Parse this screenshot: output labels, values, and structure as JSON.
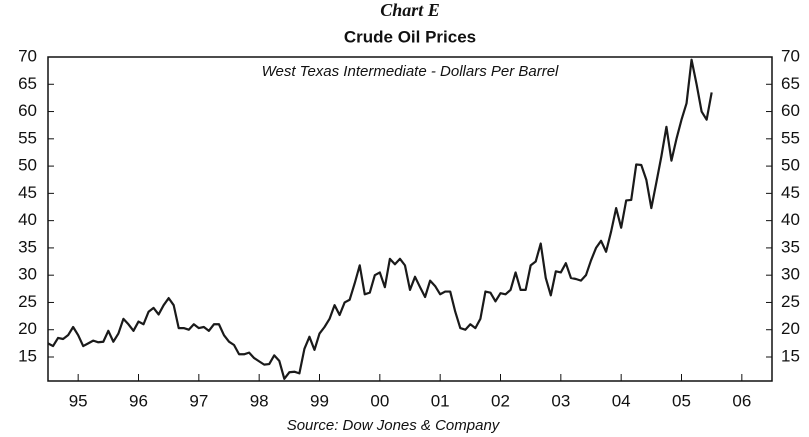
{
  "chart_data": {
    "type": "line",
    "title": "Chart E",
    "subtitle": "Crude Oil Prices",
    "annotation": "West Texas Intermediate - Dollars Per Barrel",
    "source": "Source: Dow Jones & Company",
    "categories": [
      null,
      null,
      null,
      null,
      null,
      null,
      "95",
      null,
      null,
      null,
      null,
      null,
      null,
      null,
      null,
      null,
      null,
      null,
      "96",
      null,
      null,
      null,
      null,
      null,
      null,
      null,
      null,
      null,
      null,
      null,
      "97",
      null,
      null,
      null,
      null,
      null,
      null,
      null,
      null,
      null,
      null,
      null,
      "98",
      null,
      null,
      null,
      null,
      null,
      null,
      null,
      null,
      null,
      null,
      null,
      "99",
      null,
      null,
      null,
      null,
      null,
      null,
      null,
      null,
      null,
      null,
      null,
      "00",
      null,
      null,
      null,
      null,
      null,
      null,
      null,
      null,
      null,
      null,
      null,
      "01",
      null,
      null,
      null,
      null,
      null,
      null,
      null,
      null,
      null,
      null,
      null,
      "02",
      null,
      null,
      null,
      null,
      null,
      null,
      null,
      null,
      null,
      null,
      null,
      "03",
      null,
      null,
      null,
      null,
      null,
      null,
      null,
      null,
      null,
      null,
      null,
      "04",
      null,
      null,
      null,
      null,
      null,
      null,
      null,
      null,
      null,
      null,
      null,
      "05",
      null,
      null,
      null,
      null,
      null,
      null,
      null,
      null,
      null,
      null,
      null,
      "06",
      null,
      null,
      null,
      null,
      null,
      null
    ],
    "series": [
      {
        "name": "West Texas Intermediate",
        "color": "#1a1a1a",
        "values": [
          17.5,
          17,
          18.5,
          18.3,
          19,
          20.5,
          19,
          17,
          17.5,
          18,
          17.7,
          17.8,
          19.8,
          17.8,
          19.3,
          22,
          21,
          19.8,
          21.5,
          21,
          23.3,
          24,
          22.8,
          24.5,
          25.8,
          24.5,
          20.3,
          20.3,
          20,
          21,
          20.3,
          20.5,
          19.8,
          21,
          21,
          19,
          17.8,
          17.2,
          15.5,
          15.5,
          15.8,
          14.8,
          14.2,
          13.6,
          13.7,
          15.3,
          14.3,
          11,
          12.2,
          12.3,
          12,
          16.5,
          18.7,
          16.3,
          19.3,
          20.5,
          22,
          24.5,
          22.7,
          25,
          25.5,
          28.5,
          31.8,
          26.5,
          26.8,
          30,
          30.5,
          27.8,
          33,
          32,
          33,
          31.8,
          27.3,
          29.7,
          27.8,
          26,
          29,
          28,
          26.5,
          27,
          27,
          23.3,
          20.3,
          20,
          21,
          20.3,
          22,
          27,
          26.8,
          25.2,
          26.7,
          26.5,
          27.3,
          30.5,
          27.3,
          27.3,
          31.8,
          32.5,
          35.8,
          29.5,
          26.3,
          30.7,
          30.5,
          32.2,
          29.5,
          29.3,
          29,
          30,
          32.7,
          35,
          36.3,
          34.3,
          38,
          42.3,
          38.7,
          43.7,
          43.8,
          50.3,
          50.2,
          47.5,
          42.3,
          47,
          51.8,
          57.2,
          51,
          55,
          58.5,
          61.5,
          69.5,
          65,
          60,
          58.5,
          63.5,
          null,
          null,
          null,
          null,
          null,
          null,
          null,
          null,
          null,
          null,
          null,
          null
        ]
      }
    ],
    "ylim": [
      10.6,
      70
    ],
    "yticks": [
      15,
      20,
      25,
      30,
      35,
      40,
      45,
      50,
      55,
      60,
      65,
      70
    ],
    "right_axis_labels": true,
    "grid": false
  }
}
